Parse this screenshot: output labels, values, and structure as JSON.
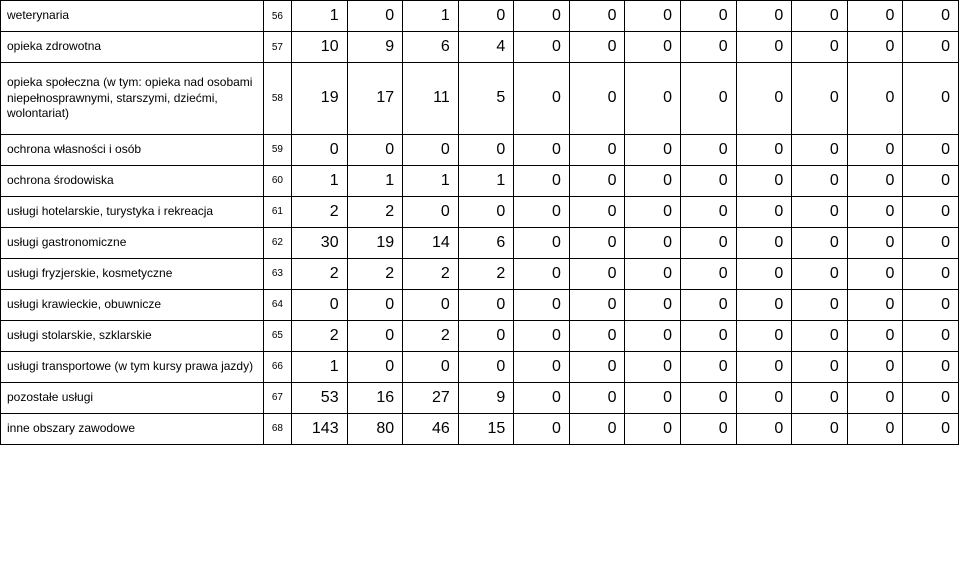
{
  "table": {
    "label_col_width": 260,
    "rownum_col_width": 28,
    "val_col_width": 55,
    "border_color": "#000000",
    "text_color": "#000000",
    "label_fontsize": 12,
    "rownum_fontsize": 10,
    "val_fontsize": 16,
    "background_color": "#ffffff",
    "rows": [
      {
        "label": "weterynaria",
        "num": "56",
        "values": [
          "1",
          "0",
          "1",
          "0",
          "0",
          "0",
          "0",
          "0",
          "0",
          "0",
          "0",
          "0"
        ],
        "tall": false
      },
      {
        "label": "opieka zdrowotna",
        "num": "57",
        "values": [
          "10",
          "9",
          "6",
          "4",
          "0",
          "0",
          "0",
          "0",
          "0",
          "0",
          "0",
          "0"
        ],
        "tall": false
      },
      {
        "label": "opieka społeczna (w tym: opieka nad osobami niepełnosprawnymi, starszymi, dziećmi, wolontariat)",
        "num": "58",
        "values": [
          "19",
          "17",
          "11",
          "5",
          "0",
          "0",
          "0",
          "0",
          "0",
          "0",
          "0",
          "0"
        ],
        "tall": true
      },
      {
        "label": "ochrona własności i osób",
        "num": "59",
        "values": [
          "0",
          "0",
          "0",
          "0",
          "0",
          "0",
          "0",
          "0",
          "0",
          "0",
          "0",
          "0"
        ],
        "tall": false
      },
      {
        "label": "ochrona środowiska",
        "num": "60",
        "values": [
          "1",
          "1",
          "1",
          "1",
          "0",
          "0",
          "0",
          "0",
          "0",
          "0",
          "0",
          "0"
        ],
        "tall": false
      },
      {
        "label": "usługi hotelarskie, turystyka i rekreacja",
        "num": "61",
        "values": [
          "2",
          "2",
          "0",
          "0",
          "0",
          "0",
          "0",
          "0",
          "0",
          "0",
          "0",
          "0"
        ],
        "tall": false
      },
      {
        "label": "usługi gastronomiczne",
        "num": "62",
        "values": [
          "30",
          "19",
          "14",
          "6",
          "0",
          "0",
          "0",
          "0",
          "0",
          "0",
          "0",
          "0"
        ],
        "tall": false
      },
      {
        "label": "usługi fryzjerskie, kosmetyczne",
        "num": "63",
        "values": [
          "2",
          "2",
          "2",
          "2",
          "0",
          "0",
          "0",
          "0",
          "0",
          "0",
          "0",
          "0"
        ],
        "tall": false
      },
      {
        "label": "usługi krawieckie, obuwnicze",
        "num": "64",
        "values": [
          "0",
          "0",
          "0",
          "0",
          "0",
          "0",
          "0",
          "0",
          "0",
          "0",
          "0",
          "0"
        ],
        "tall": false
      },
      {
        "label": "usługi stolarskie, szklarskie",
        "num": "65",
        "values": [
          "2",
          "0",
          "2",
          "0",
          "0",
          "0",
          "0",
          "0",
          "0",
          "0",
          "0",
          "0"
        ],
        "tall": false
      },
      {
        "label": "usługi transportowe (w tym kursy prawa jazdy)",
        "num": "66",
        "values": [
          "1",
          "0",
          "0",
          "0",
          "0",
          "0",
          "0",
          "0",
          "0",
          "0",
          "0",
          "0"
        ],
        "tall": false
      },
      {
        "label": "pozostałe usługi",
        "num": "67",
        "values": [
          "53",
          "16",
          "27",
          "9",
          "0",
          "0",
          "0",
          "0",
          "0",
          "0",
          "0",
          "0"
        ],
        "tall": false
      },
      {
        "label": "inne obszary zawodowe",
        "num": "68",
        "values": [
          "143",
          "80",
          "46",
          "15",
          "0",
          "0",
          "0",
          "0",
          "0",
          "0",
          "0",
          "0"
        ],
        "tall": false
      }
    ]
  }
}
